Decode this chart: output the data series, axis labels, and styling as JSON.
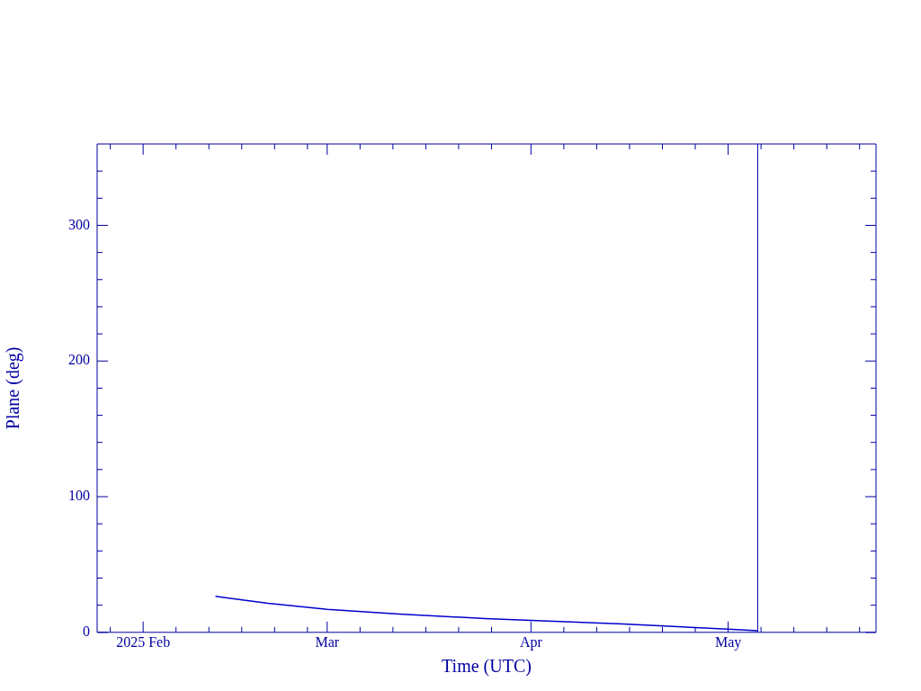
{
  "chart_data": {
    "type": "line",
    "xlabel": "Time (UTC)",
    "ylabel": "Plane (deg)",
    "x": [
      "2025-02-12",
      "2025-02-20",
      "2025-03-01",
      "2025-03-12",
      "2025-03-25",
      "2025-04-01",
      "2025-04-15",
      "2025-05-01",
      "2025-05-05T12:00"
    ],
    "series": [
      {
        "color": "#0000cc",
        "values": [
          26.5,
          21.5,
          17,
          13.5,
          10.2,
          8.9,
          6.2,
          2.3,
          1.2
        ]
      }
    ],
    "xlim": [
      "2025-01-25",
      "2025-05-23T12:00"
    ],
    "xticks": [
      {
        "value": "2025-01-27",
        "label": null
      },
      {
        "value": "2025-02-01",
        "label": "2025 Feb"
      },
      {
        "value": "2025-02-06",
        "label": null
      },
      {
        "value": "2025-02-11",
        "label": null
      },
      {
        "value": "2025-02-16",
        "label": null
      },
      {
        "value": "2025-02-21",
        "label": null
      },
      {
        "value": "2025-02-26",
        "label": null
      },
      {
        "value": "2025-03-01",
        "label": "Mar"
      },
      {
        "value": "2025-03-06",
        "label": null
      },
      {
        "value": "2025-03-11",
        "label": null
      },
      {
        "value": "2025-03-16",
        "label": null
      },
      {
        "value": "2025-03-21",
        "label": null
      },
      {
        "value": "2025-03-26",
        "label": null
      },
      {
        "value": "2025-04-01",
        "label": "Apr"
      },
      {
        "value": "2025-04-06",
        "label": null
      },
      {
        "value": "2025-04-11",
        "label": null
      },
      {
        "value": "2025-04-16",
        "label": null
      },
      {
        "value": "2025-04-21",
        "label": null
      },
      {
        "value": "2025-04-26",
        "label": null
      },
      {
        "value": "2025-05-01",
        "label": "May"
      },
      {
        "value": "2025-05-06",
        "label": null
      },
      {
        "value": "2025-05-11",
        "label": null
      },
      {
        "value": "2025-05-16",
        "label": null
      },
      {
        "value": "2025-05-21",
        "label": null
      }
    ],
    "ylim": [
      0,
      360
    ],
    "yticks": [
      0,
      {
        "value": 20,
        "label": null
      },
      {
        "value": 40,
        "label": null
      },
      {
        "value": 60,
        "label": null
      },
      {
        "value": 80,
        "label": null
      },
      100,
      {
        "value": 120,
        "label": null
      },
      {
        "value": 140,
        "label": null
      },
      {
        "value": 160,
        "label": null
      },
      {
        "value": 180,
        "label": null
      },
      200,
      {
        "value": 220,
        "label": null
      },
      {
        "value": 240,
        "label": null
      },
      {
        "value": 260,
        "label": null
      },
      {
        "value": 280,
        "label": null
      },
      300,
      {
        "value": 320,
        "label": null
      },
      {
        "value": 340,
        "label": null
      }
    ],
    "ref_lines": [
      {
        "axis": "x",
        "value": "2025-05-05T12:00",
        "color": "#0000a0"
      }
    ],
    "grid": false,
    "legend": false,
    "marker": "none",
    "line_style": "solid"
  }
}
